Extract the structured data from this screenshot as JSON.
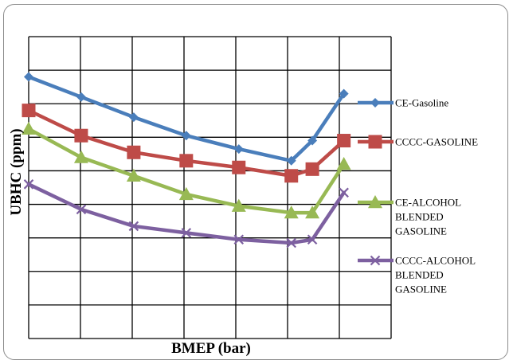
{
  "chart_data": {
    "type": "line",
    "xlabel": "BMEP (bar)",
    "ylabel": "UBHC (ppm)",
    "x": [
      0,
      1,
      2,
      3,
      4,
      5,
      5.4,
      6
    ],
    "xlim": [
      0,
      6.9
    ],
    "ylim": [
      0,
      9
    ],
    "grid": true,
    "legend_position": "right",
    "series": [
      {
        "name": "CE-Gasoline",
        "color": "#4a7ebb",
        "marker": "diamond",
        "values": [
          7.8,
          7.2,
          6.6,
          6.05,
          5.65,
          5.3,
          5.9,
          7.3
        ]
      },
      {
        "name": "CCCC-GASOLINE",
        "color": "#be4b48",
        "marker": "square",
        "values": [
          6.8,
          6.05,
          5.55,
          5.3,
          5.1,
          4.85,
          5.05,
          5.9
        ]
      },
      {
        "name": "CE-ALCOHOL\nBLENDED\nGASOLINE",
        "color": "#98b954",
        "marker": "triangle",
        "values": [
          6.25,
          5.4,
          4.85,
          4.3,
          3.95,
          3.75,
          3.75,
          5.2
        ]
      },
      {
        "name": "CCCC-ALCOHOL\nBLENDED\nGASOLINE",
        "color": "#7d60a0",
        "marker": "x",
        "values": [
          4.6,
          3.85,
          3.35,
          3.15,
          2.95,
          2.85,
          2.95,
          4.35
        ]
      }
    ]
  }
}
